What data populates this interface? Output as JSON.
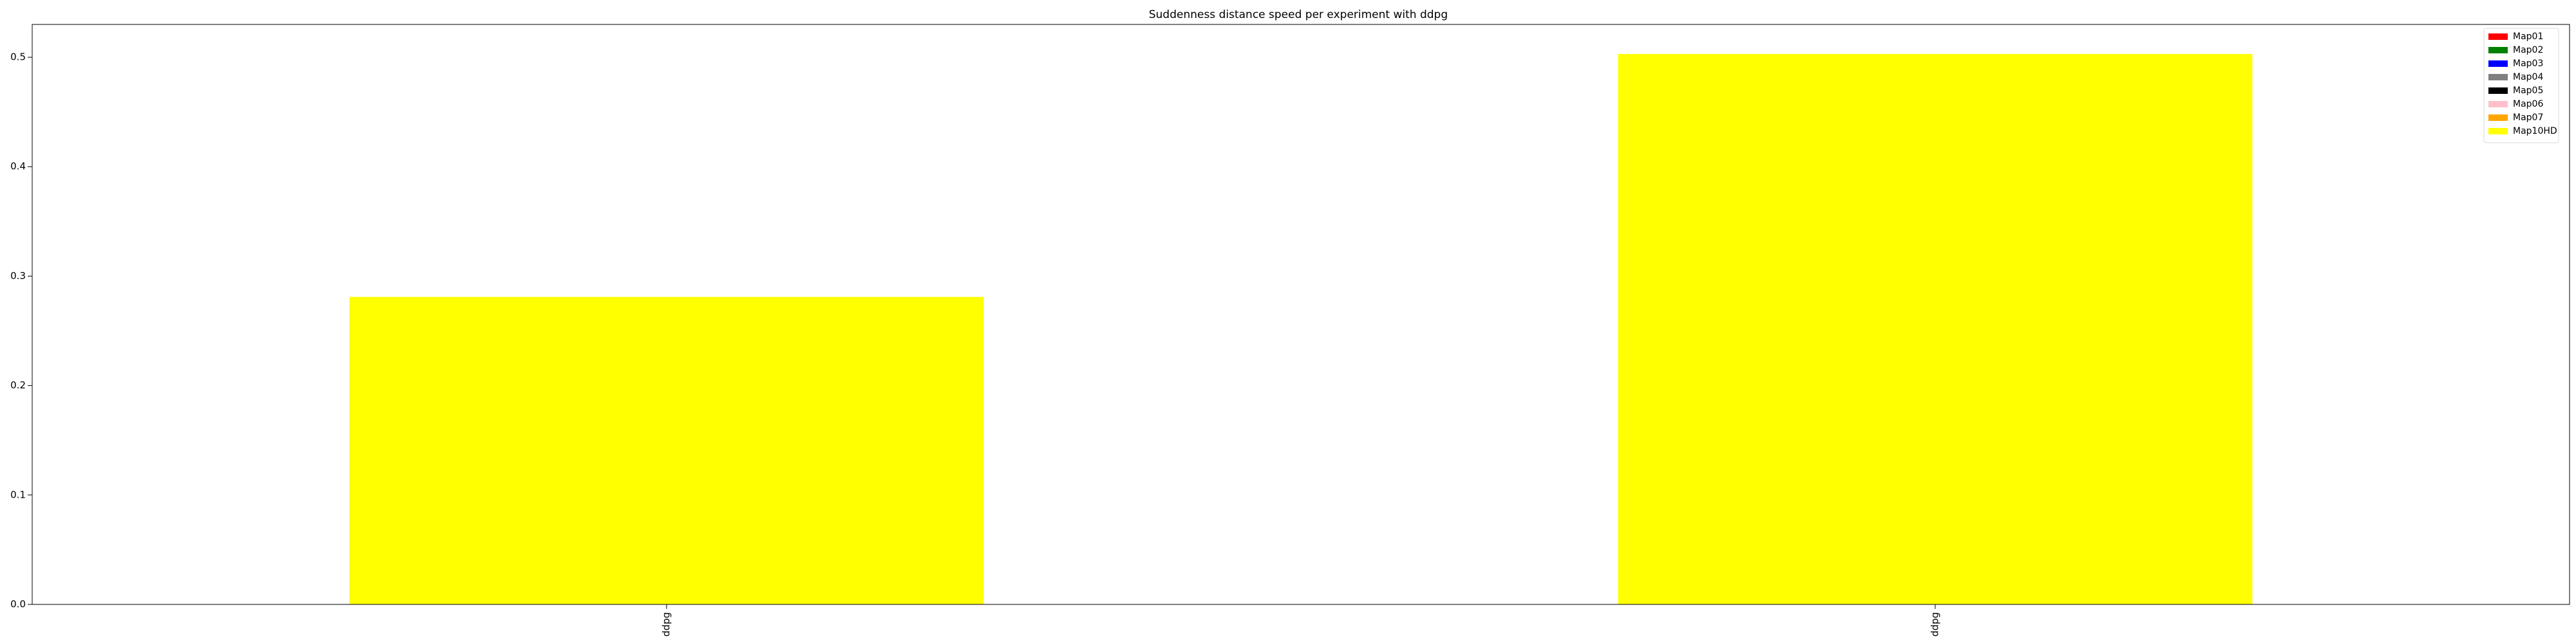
{
  "chart_data": {
    "type": "bar",
    "title": "Suddenness distance speed per experiment with ddpg",
    "xlabel": "",
    "ylabel": "",
    "categories": [
      "ddpg",
      "ddpg"
    ],
    "series": [
      {
        "name": "Map10HD",
        "color": "#ffff00",
        "values": [
          0.281,
          0.503
        ]
      }
    ],
    "ylim": [
      0,
      0.53
    ],
    "yticks": [
      0.0,
      0.1,
      0.2,
      0.3,
      0.4,
      0.5
    ],
    "ytick_labels": [
      "0.0",
      "0.1",
      "0.2",
      "0.3",
      "0.4",
      "0.5"
    ],
    "grid": false,
    "legend": {
      "placement": "top-right",
      "entries": [
        {
          "label": "Map01",
          "color": "#ff0000"
        },
        {
          "label": "Map02",
          "color": "#008000"
        },
        {
          "label": "Map03",
          "color": "#0000ff"
        },
        {
          "label": "Map04",
          "color": "#808080"
        },
        {
          "label": "Map05",
          "color": "#000000"
        },
        {
          "label": "Map06",
          "color": "#ffc0cb"
        },
        {
          "label": "Map07",
          "color": "#ffa500"
        },
        {
          "label": "Map10HD",
          "color": "#ffff00"
        }
      ]
    }
  }
}
